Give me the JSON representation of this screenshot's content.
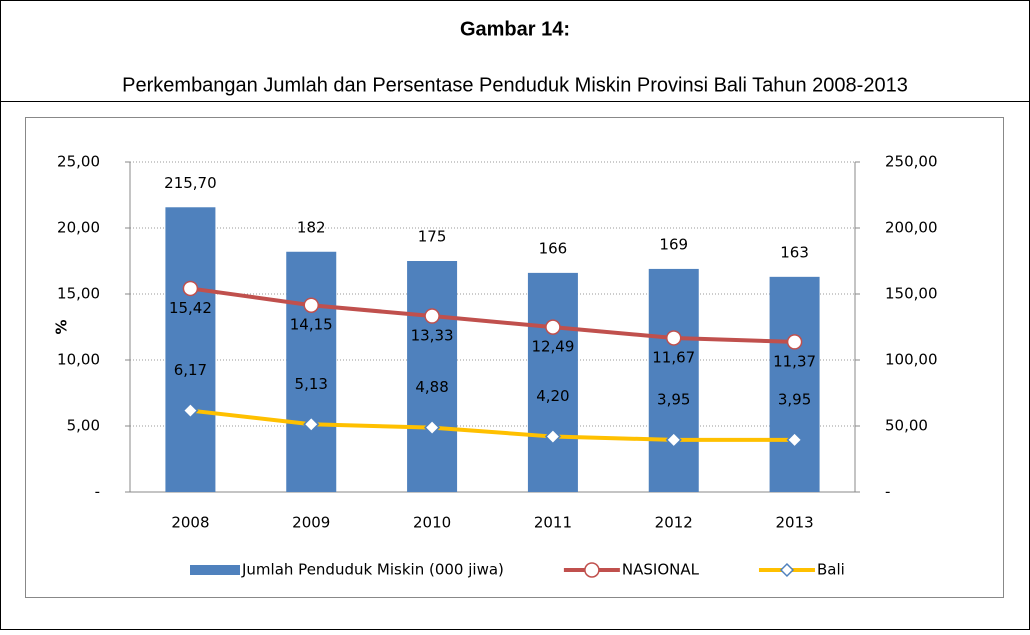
{
  "chart_data": {
    "type": "bar-line",
    "title": "Gambar 14:",
    "subtitle": "Perkembangan Jumlah dan Persentase Penduduk Miskin Provinsi Bali Tahun 2008-2013",
    "y_label": "%",
    "categories": [
      "2008",
      "2009",
      "2010",
      "2011",
      "2012",
      "2013"
    ],
    "series": [
      {
        "name": "Jumlah Penduduk Miskin (000 jiwa)",
        "type": "bar",
        "axis": "y2",
        "color": "#4f81bd",
        "values": [
          215.7,
          182,
          175,
          166,
          169,
          163
        ],
        "value_labels": [
          "215,70",
          "182",
          "175",
          "166",
          "169",
          "163"
        ]
      },
      {
        "name": "NASIONAL",
        "type": "line",
        "axis": "y",
        "color": "#c0504d",
        "marker": "circle",
        "marker_color": "#c0504d",
        "values": [
          15.42,
          14.15,
          13.33,
          12.49,
          11.67,
          11.37
        ],
        "value_labels": [
          "15,42",
          "14,15",
          "13,33",
          "12,49",
          "11,67",
          "11,37"
        ]
      },
      {
        "name": "Bali",
        "type": "line",
        "axis": "y",
        "color": "#ffc000",
        "marker": "diamond",
        "marker_color": "#4f81bd",
        "values": [
          6.17,
          5.13,
          4.88,
          4.2,
          3.95,
          3.95
        ],
        "value_labels": [
          "6,17",
          "5,13",
          "4,88",
          "4,20",
          "3,95",
          "3,95"
        ]
      }
    ],
    "ylim": [
      0,
      25
    ],
    "yticks": [
      {
        "value": 0,
        "label": "-"
      },
      {
        "value": 5,
        "label": "5,00"
      },
      {
        "value": 10,
        "label": "10,00"
      },
      {
        "value": 15,
        "label": "15,00"
      },
      {
        "value": 20,
        "label": "20,00"
      },
      {
        "value": 25,
        "label": "25,00"
      }
    ],
    "y2lim": [
      0,
      250
    ],
    "y2ticks": [
      {
        "value": 0,
        "label": "-"
      },
      {
        "value": 50,
        "label": "50,00"
      },
      {
        "value": 100,
        "label": "100,00"
      },
      {
        "value": 150,
        "label": "150,00"
      },
      {
        "value": 200,
        "label": "200,00"
      },
      {
        "value": 250,
        "label": "250,00"
      }
    ],
    "grid": true
  }
}
